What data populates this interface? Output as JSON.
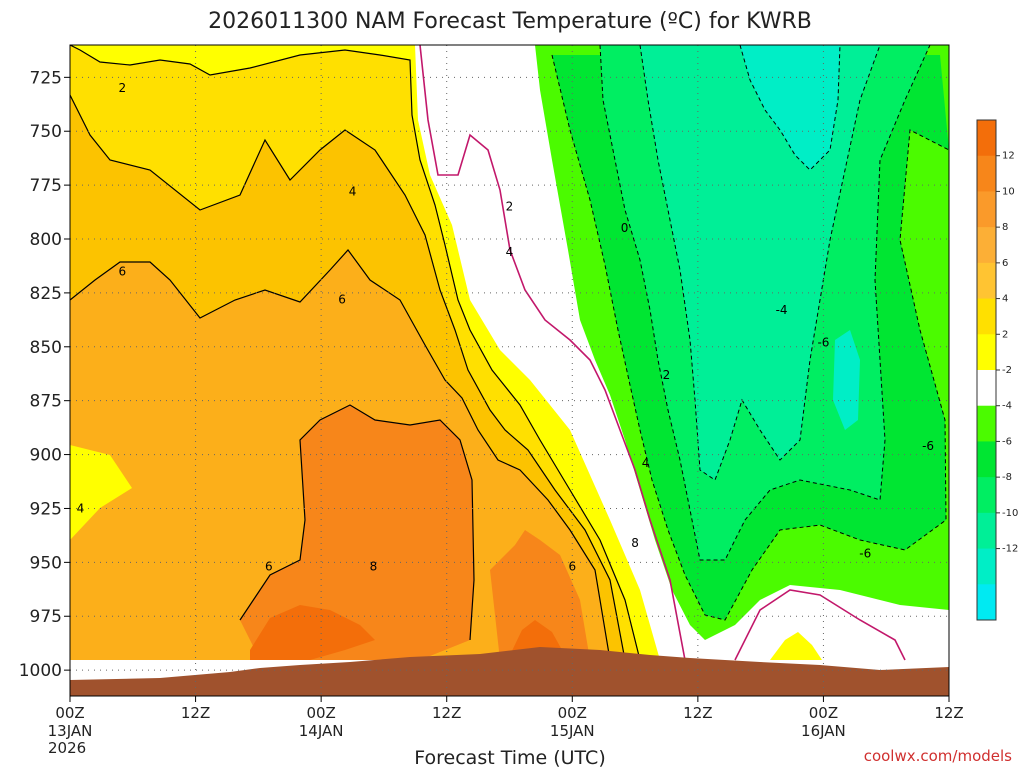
{
  "chart_data": {
    "type": "heatmap",
    "title": "2026011300 NAM Forecast Temperature (ºC) for KWRB",
    "xlabel": "Forecast Time (UTC)",
    "ylabel": "",
    "x_ticks": [
      "00Z",
      "12Z",
      "00Z",
      "12Z",
      "00Z",
      "12Z",
      "00Z",
      "12Z"
    ],
    "x_hours": [
      0,
      12,
      24,
      36,
      48,
      60,
      72,
      84
    ],
    "x_date_labels": [
      {
        "hour": 0,
        "text": "13JAN"
      },
      {
        "hour": 24,
        "text": "14JAN"
      },
      {
        "hour": 48,
        "text": "15JAN"
      },
      {
        "hour": 72,
        "text": "16JAN"
      }
    ],
    "year_label": "2026",
    "xlim": [
      0,
      84
    ],
    "y_ticks": [
      725,
      750,
      775,
      800,
      825,
      850,
      875,
      900,
      925,
      950,
      975,
      1000
    ],
    "ylim": [
      710,
      1012
    ],
    "colorbar_ticks": [
      12,
      10,
      8,
      6,
      4,
      2,
      -2,
      -4,
      -6,
      -8,
      -10,
      -12
    ],
    "colorbar_colors": [
      "#f36e0a",
      "#f7861a",
      "#fa9a2a",
      "#fcaf36",
      "#ffc432",
      "#ffe000",
      "#ffff00",
      "#ffffff",
      "#4bfb00",
      "#00e632",
      "#00ee62",
      "#00ef97",
      "#00eec6",
      "#00eaf2"
    ],
    "contours": [
      {
        "value": -6,
        "label": "-6"
      },
      {
        "value": -4,
        "label": "-4"
      },
      {
        "value": 0,
        "label": "0"
      },
      {
        "value": 2,
        "label": "2"
      },
      {
        "value": 4,
        "label": "4"
      },
      {
        "value": 6,
        "label": "6"
      },
      {
        "value": 8,
        "label": "8"
      }
    ],
    "series": [
      {
        "name": "Temperature (ºC) at 725 hPa",
        "x": [
          0,
          12,
          24,
          36,
          48,
          60,
          72,
          84
        ],
        "values": [
          2,
          3,
          3,
          1,
          -1,
          -5,
          -9,
          -3
        ]
      },
      {
        "name": "Temperature (ºC) at 850 hPa",
        "x": [
          0,
          12,
          24,
          36,
          48,
          60,
          72,
          84
        ],
        "values": [
          5,
          6,
          6,
          5,
          2,
          -4,
          -6,
          -3
        ]
      },
      {
        "name": "Temperature (ºC) at 950 hPa",
        "x": [
          0,
          12,
          24,
          36,
          48,
          60,
          72,
          84
        ],
        "values": [
          4,
          6,
          8,
          7,
          8,
          3,
          -4,
          -1
        ]
      }
    ]
  },
  "credit": "coolwx.com/models"
}
